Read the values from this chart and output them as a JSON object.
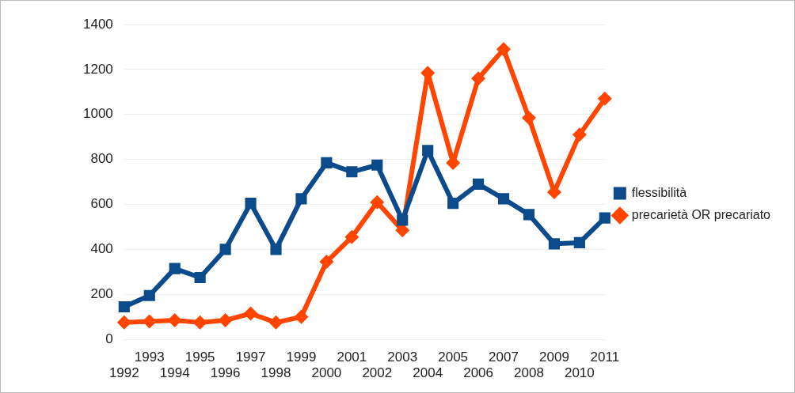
{
  "chart_data": {
    "type": "line",
    "categories": [
      "1992",
      "1993",
      "1994",
      "1995",
      "1996",
      "1997",
      "1998",
      "1999",
      "2000",
      "2001",
      "2002",
      "2003",
      "2004",
      "2005",
      "2006",
      "2007",
      "2008",
      "2009",
      "2010",
      "2011"
    ],
    "series": [
      {
        "name": "flessibilità",
        "color": "#0b4a8b",
        "marker": "square",
        "values": [
          145,
          195,
          315,
          275,
          400,
          605,
          400,
          625,
          785,
          745,
          775,
          530,
          840,
          605,
          690,
          625,
          555,
          425,
          430,
          540
        ]
      },
      {
        "name": "precarietà OR precariato",
        "color": "#ff4500",
        "marker": "diamond",
        "values": [
          75,
          80,
          85,
          75,
          85,
          115,
          75,
          100,
          345,
          455,
          610,
          485,
          1185,
          785,
          1160,
          1290,
          985,
          655,
          910,
          1070
        ]
      }
    ],
    "ylim": [
      0,
      1400
    ],
    "yticks": [
      0,
      200,
      400,
      600,
      800,
      1000,
      1200,
      1400
    ],
    "grid": "y",
    "legend": "right",
    "line_style": "solid"
  }
}
